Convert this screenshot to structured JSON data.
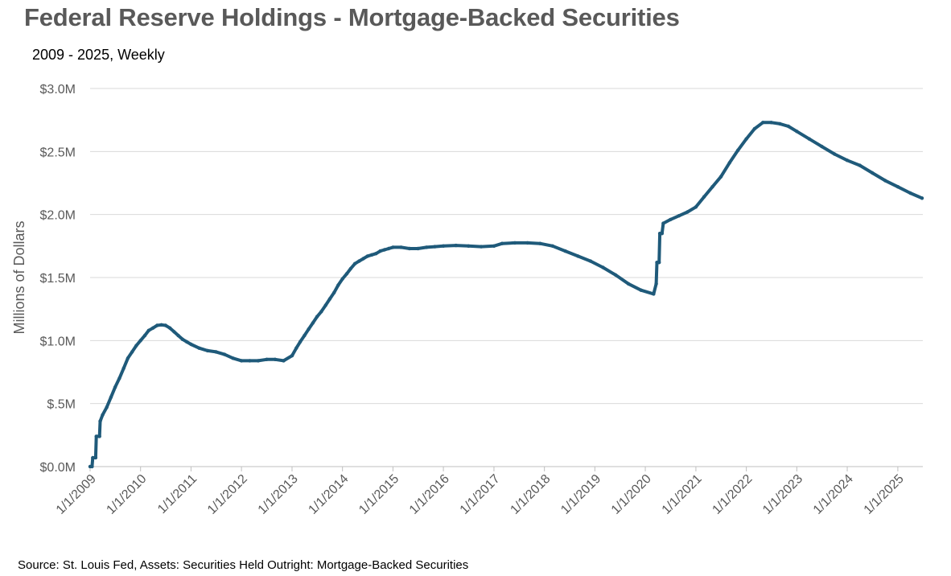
{
  "header": {
    "title": "Federal Reserve Holdings - Mortgage-Backed Securities",
    "subtitle": "2009 - 2025, Weekly"
  },
  "footer": {
    "source": "Source: St. Louis Fed, Assets: Securities Held Outright: Mortgage-Backed Securities"
  },
  "chart_data": {
    "type": "line",
    "title": "Federal Reserve Holdings - Mortgage-Backed Securities",
    "subtitle": "2009 - 2025, Weekly",
    "ylabel": "Millions of Dollars",
    "xlabel": "",
    "ylim": [
      0,
      3.0
    ],
    "xlim": [
      "2009-01-01",
      "2025-07-01"
    ],
    "y_ticks": [
      {
        "value": 0.0,
        "label": "$0.0M"
      },
      {
        "value": 0.5,
        "label": "$.5M"
      },
      {
        "value": 1.0,
        "label": "$1.0M"
      },
      {
        "value": 1.5,
        "label": "$1.5M"
      },
      {
        "value": 2.0,
        "label": "$2.0M"
      },
      {
        "value": 2.5,
        "label": "$2.5M"
      },
      {
        "value": 3.0,
        "label": "$3.0M"
      }
    ],
    "x_ticks": [
      {
        "date": "2009-01-01",
        "label": "1/1/2009"
      },
      {
        "date": "2010-01-01",
        "label": "1/1/2010"
      },
      {
        "date": "2011-01-01",
        "label": "1/1/2011"
      },
      {
        "date": "2012-01-01",
        "label": "1/1/2012"
      },
      {
        "date": "2013-01-01",
        "label": "1/1/2013"
      },
      {
        "date": "2014-01-01",
        "label": "1/1/2014"
      },
      {
        "date": "2015-01-01",
        "label": "1/1/2015"
      },
      {
        "date": "2016-01-01",
        "label": "1/1/2016"
      },
      {
        "date": "2017-01-01",
        "label": "1/1/2017"
      },
      {
        "date": "2018-01-01",
        "label": "1/1/2018"
      },
      {
        "date": "2019-01-01",
        "label": "1/1/2019"
      },
      {
        "date": "2020-01-01",
        "label": "1/1/2020"
      },
      {
        "date": "2021-01-01",
        "label": "1/1/2021"
      },
      {
        "date": "2022-01-01",
        "label": "1/1/2022"
      },
      {
        "date": "2023-01-01",
        "label": "1/1/2023"
      },
      {
        "date": "2024-01-01",
        "label": "1/1/2024"
      },
      {
        "date": "2025-01-01",
        "label": "1/1/2025"
      }
    ],
    "grid": true,
    "legend": "none",
    "series": [
      {
        "color": "#1f5a7a",
        "points": [
          [
            "2009-01-01",
            0.0
          ],
          [
            "2009-01-15",
            0.0
          ],
          [
            "2009-01-20",
            0.07
          ],
          [
            "2009-02-10",
            0.07
          ],
          [
            "2009-02-15",
            0.24
          ],
          [
            "2009-03-10",
            0.24
          ],
          [
            "2009-03-15",
            0.36
          ],
          [
            "2009-04-01",
            0.41
          ],
          [
            "2009-05-01",
            0.47
          ],
          [
            "2009-06-01",
            0.55
          ],
          [
            "2009-07-01",
            0.63
          ],
          [
            "2009-08-01",
            0.7
          ],
          [
            "2009-09-01",
            0.78
          ],
          [
            "2009-10-01",
            0.86
          ],
          [
            "2009-11-01",
            0.91
          ],
          [
            "2009-12-01",
            0.96
          ],
          [
            "2010-01-01",
            1.0
          ],
          [
            "2010-02-01",
            1.04
          ],
          [
            "2010-03-01",
            1.08
          ],
          [
            "2010-04-01",
            1.1
          ],
          [
            "2010-05-01",
            1.12
          ],
          [
            "2010-06-01",
            1.125
          ],
          [
            "2010-07-01",
            1.12
          ],
          [
            "2010-08-01",
            1.1
          ],
          [
            "2010-09-01",
            1.07
          ],
          [
            "2010-10-01",
            1.04
          ],
          [
            "2010-11-01",
            1.01
          ],
          [
            "2010-12-01",
            0.99
          ],
          [
            "2011-01-01",
            0.97
          ],
          [
            "2011-03-01",
            0.94
          ],
          [
            "2011-05-01",
            0.92
          ],
          [
            "2011-07-01",
            0.91
          ],
          [
            "2011-09-01",
            0.89
          ],
          [
            "2011-11-01",
            0.86
          ],
          [
            "2012-01-01",
            0.84
          ],
          [
            "2012-03-01",
            0.84
          ],
          [
            "2012-05-01",
            0.84
          ],
          [
            "2012-07-01",
            0.85
          ],
          [
            "2012-09-01",
            0.85
          ],
          [
            "2012-11-01",
            0.84
          ],
          [
            "2013-01-01",
            0.88
          ],
          [
            "2013-02-01",
            0.94
          ],
          [
            "2013-03-01",
            0.99
          ],
          [
            "2013-04-01",
            1.04
          ],
          [
            "2013-05-01",
            1.09
          ],
          [
            "2013-06-01",
            1.14
          ],
          [
            "2013-07-01",
            1.19
          ],
          [
            "2013-08-01",
            1.23
          ],
          [
            "2013-09-01",
            1.28
          ],
          [
            "2013-10-01",
            1.33
          ],
          [
            "2013-11-01",
            1.38
          ],
          [
            "2013-12-01",
            1.44
          ],
          [
            "2014-01-01",
            1.49
          ],
          [
            "2014-02-01",
            1.53
          ],
          [
            "2014-03-01",
            1.57
          ],
          [
            "2014-04-01",
            1.61
          ],
          [
            "2014-05-01",
            1.63
          ],
          [
            "2014-06-01",
            1.65
          ],
          [
            "2014-07-01",
            1.67
          ],
          [
            "2014-08-01",
            1.68
          ],
          [
            "2014-09-01",
            1.69
          ],
          [
            "2014-10-01",
            1.71
          ],
          [
            "2014-11-01",
            1.72
          ],
          [
            "2014-12-01",
            1.73
          ],
          [
            "2015-01-01",
            1.74
          ],
          [
            "2015-03-01",
            1.74
          ],
          [
            "2015-05-01",
            1.73
          ],
          [
            "2015-07-01",
            1.73
          ],
          [
            "2015-09-01",
            1.74
          ],
          [
            "2015-11-01",
            1.745
          ],
          [
            "2016-01-01",
            1.75
          ],
          [
            "2016-04-01",
            1.755
          ],
          [
            "2016-07-01",
            1.75
          ],
          [
            "2016-10-01",
            1.745
          ],
          [
            "2017-01-01",
            1.75
          ],
          [
            "2017-03-01",
            1.77
          ],
          [
            "2017-06-01",
            1.775
          ],
          [
            "2017-09-01",
            1.775
          ],
          [
            "2017-12-01",
            1.77
          ],
          [
            "2018-03-01",
            1.75
          ],
          [
            "2018-06-01",
            1.71
          ],
          [
            "2018-09-01",
            1.67
          ],
          [
            "2018-12-01",
            1.63
          ],
          [
            "2019-03-01",
            1.58
          ],
          [
            "2019-06-01",
            1.52
          ],
          [
            "2019-09-01",
            1.45
          ],
          [
            "2019-12-01",
            1.4
          ],
          [
            "2020-03-01",
            1.37
          ],
          [
            "2020-03-20",
            1.45
          ],
          [
            "2020-03-25",
            1.62
          ],
          [
            "2020-04-10",
            1.62
          ],
          [
            "2020-04-15",
            1.85
          ],
          [
            "2020-05-01",
            1.85
          ],
          [
            "2020-05-10",
            1.93
          ],
          [
            "2020-07-01",
            1.96
          ],
          [
            "2020-09-01",
            1.99
          ],
          [
            "2020-11-01",
            2.02
          ],
          [
            "2021-01-01",
            2.06
          ],
          [
            "2021-03-01",
            2.14
          ],
          [
            "2021-05-01",
            2.22
          ],
          [
            "2021-07-01",
            2.3
          ],
          [
            "2021-09-01",
            2.41
          ],
          [
            "2021-11-01",
            2.51
          ],
          [
            "2022-01-01",
            2.6
          ],
          [
            "2022-03-01",
            2.68
          ],
          [
            "2022-05-01",
            2.73
          ],
          [
            "2022-07-01",
            2.73
          ],
          [
            "2022-09-01",
            2.72
          ],
          [
            "2022-11-01",
            2.7
          ],
          [
            "2023-01-01",
            2.66
          ],
          [
            "2023-04-01",
            2.6
          ],
          [
            "2023-07-01",
            2.54
          ],
          [
            "2023-10-01",
            2.48
          ],
          [
            "2024-01-01",
            2.43
          ],
          [
            "2024-04-01",
            2.39
          ],
          [
            "2024-07-01",
            2.33
          ],
          [
            "2024-10-01",
            2.27
          ],
          [
            "2025-01-01",
            2.22
          ],
          [
            "2025-04-01",
            2.17
          ],
          [
            "2025-06-25",
            2.13
          ]
        ]
      }
    ]
  }
}
